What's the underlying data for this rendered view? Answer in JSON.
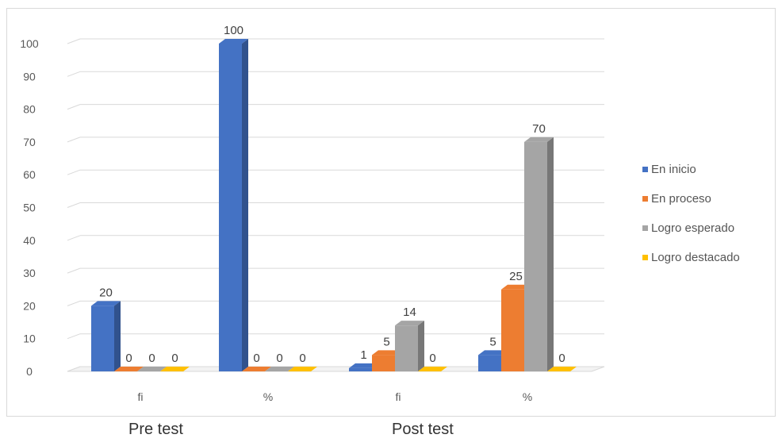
{
  "chart_data": {
    "type": "bar",
    "subtype": "3d-clustered-column",
    "categories": [
      "fi",
      "%",
      "fi",
      "%"
    ],
    "groups": [
      {
        "label": "Pre test",
        "categories": [
          "fi",
          "%"
        ]
      },
      {
        "label": "Post test",
        "categories": [
          "fi",
          "%"
        ]
      }
    ],
    "series": [
      {
        "name": "En inicio",
        "color": "#4472c4",
        "values": [
          20,
          100,
          1,
          5
        ]
      },
      {
        "name": "En proceso",
        "color": "#ed7d31",
        "values": [
          0,
          0,
          5,
          25
        ]
      },
      {
        "name": "Logro esperado",
        "color": "#a5a5a5",
        "values": [
          0,
          0,
          14,
          70
        ]
      },
      {
        "name": "Logro destacado",
        "color": "#ffc000",
        "values": [
          0,
          0,
          0,
          0
        ]
      }
    ],
    "data_labels": [
      [
        "20",
        "0",
        "0",
        "0"
      ],
      [
        "100",
        "0",
        "0",
        "0"
      ],
      [
        "1",
        "5",
        "14",
        "0"
      ],
      [
        "5",
        "25",
        "70",
        "0"
      ]
    ],
    "y_ticks": [
      "0",
      "10",
      "20",
      "30",
      "40",
      "50",
      "60",
      "70",
      "80",
      "90",
      "100"
    ],
    "ylim": [
      0,
      100
    ],
    "grid": true,
    "legend_position": "right"
  }
}
